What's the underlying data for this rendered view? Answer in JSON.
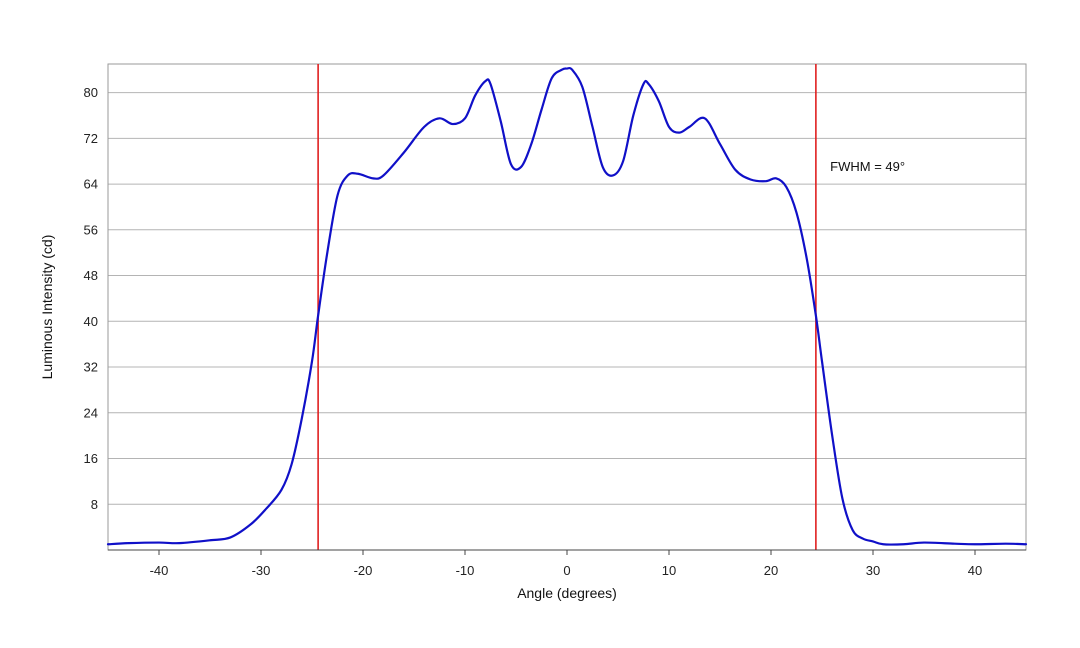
{
  "chart_data": {
    "type": "line",
    "title": "",
    "xlabel": "Angle (degrees)",
    "ylabel": "Luminous Intensity (cd)",
    "xlim": [
      -45,
      45
    ],
    "ylim": [
      0,
      85
    ],
    "xticks": [
      -40,
      -30,
      -20,
      -10,
      0,
      10,
      20,
      30,
      40
    ],
    "yticks": [
      8,
      16,
      24,
      32,
      40,
      48,
      56,
      64,
      72,
      80
    ],
    "grid": "horizontal",
    "legend": "none",
    "series": [
      {
        "color": "#1010c8",
        "x": [
          -45,
          -43,
          -40,
          -38,
          -35,
          -33,
          -31,
          -29.5,
          -28,
          -27,
          -26,
          -25,
          -24.4,
          -23.5,
          -22.5,
          -21.5,
          -20.5,
          -19,
          -18,
          -16,
          -14,
          -12.5,
          -11.2,
          -10,
          -9,
          -8,
          -7.5,
          -6.5,
          -5.5,
          -4.5,
          -3.5,
          -2.5,
          -1.5,
          -0.5,
          0,
          0.5,
          1.5,
          2.5,
          3.5,
          4.5,
          5.5,
          6.5,
          7.5,
          8,
          9,
          10,
          11,
          12,
          13.5,
          15,
          16.5,
          18,
          19.5,
          20.5,
          21.5,
          22.5,
          23.5,
          24.4,
          25,
          26,
          27,
          28,
          29,
          30,
          31,
          33,
          35,
          38,
          40,
          43,
          45
        ],
        "values": [
          1.0,
          1.2,
          1.3,
          1.2,
          1.7,
          2.2,
          4.5,
          7.2,
          10.5,
          15,
          23,
          33,
          41,
          52,
          62,
          65.5,
          65.8,
          65,
          65.5,
          69.5,
          74,
          75.5,
          74.5,
          75.5,
          79.5,
          82,
          81.5,
          75,
          67.5,
          67,
          71,
          77,
          82.5,
          84,
          84.2,
          84,
          81,
          74,
          67,
          65.5,
          68,
          76,
          81.5,
          81.5,
          78.5,
          74,
          73,
          74,
          75.5,
          71,
          66.5,
          64.8,
          64.5,
          65,
          63.5,
          59,
          51,
          41,
          33,
          20,
          9,
          3.5,
          2.0,
          1.5,
          1.0,
          1.0,
          1.3,
          1.1,
          1.0,
          1.1,
          1.0
        ]
      }
    ],
    "reference_lines": [
      {
        "x": -24.4,
        "color": "#e02020"
      },
      {
        "x": 24.4,
        "color": "#e02020"
      }
    ],
    "annotations": [
      {
        "text": "FWHM = 49°",
        "x": 25.8,
        "y": 67
      }
    ]
  }
}
